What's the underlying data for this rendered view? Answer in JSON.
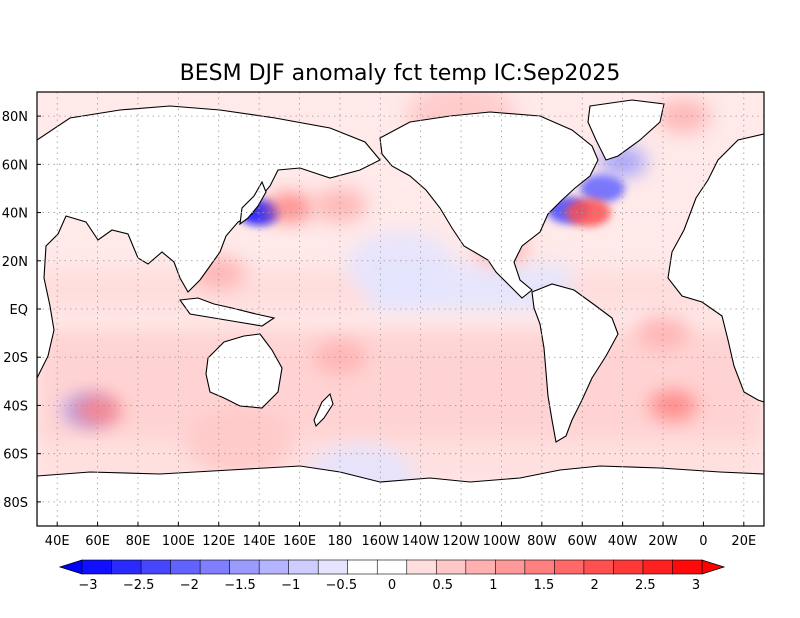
{
  "map": {
    "title": "BESM  DJF anomaly fct temp IC:Sep2025",
    "lat_labels": [
      "80N",
      "60N",
      "40N",
      "20N",
      "EQ",
      "20S",
      "40S",
      "60S",
      "80S"
    ],
    "lat_values": [
      80,
      60,
      40,
      20,
      0,
      -20,
      -40,
      -60,
      -80
    ],
    "lon_labels": [
      "40E",
      "60E",
      "80E",
      "100E",
      "120E",
      "140E",
      "160E",
      "180",
      "160W",
      "140W",
      "120W",
      "100W",
      "80W",
      "60W",
      "40W",
      "20W",
      "0",
      "20E"
    ],
    "lon_values": [
      40,
      60,
      80,
      100,
      120,
      140,
      160,
      180,
      200,
      220,
      240,
      260,
      280,
      300,
      320,
      340,
      360,
      380
    ],
    "lat_range": [
      -90,
      90
    ],
    "lon_range": [
      30,
      390
    ],
    "gridlines": "dotted"
  },
  "colorbar": {
    "labels": [
      "−3",
      "−2.5",
      "−2",
      "−1.5",
      "−1",
      "−0.5",
      "0",
      "0.5",
      "1",
      "1.5",
      "2",
      "2.5",
      "3"
    ],
    "colors": [
      "#1010ff",
      "#2a2aff",
      "#4646ff",
      "#6262ff",
      "#7e7eff",
      "#9a9aff",
      "#b4b4ff",
      "#cdcdff",
      "#e4e4ff",
      "#ffffff",
      "#ffffff",
      "#ffdede",
      "#ffc8c8",
      "#ffb0b0",
      "#ff9898",
      "#ff8080",
      "#ff6868",
      "#ff5050",
      "#ff3838",
      "#ff2020",
      "#ff0a0a"
    ],
    "under_color": "#0000ff",
    "over_color": "#ff0000"
  },
  "chart_data": {
    "type": "heatmap",
    "title": "BESM  DJF anomaly fct temp IC:Sep2025",
    "variable": "temp anomaly",
    "season": "DJF",
    "xlabel": "",
    "ylabel": "",
    "xlim": [
      30,
      390
    ],
    "ylim": [
      -90,
      90
    ],
    "colorbar_range": [
      -3,
      3
    ],
    "colorbar_step": 0.5,
    "anomaly_regions": [
      {
        "lon": 140,
        "lat": 40,
        "value": -3,
        "kind": "cold"
      },
      {
        "lon": 155,
        "lat": 42,
        "value": 1.5,
        "kind": "warm"
      },
      {
        "lon": 180,
        "lat": 43,
        "value": 1,
        "kind": "warm"
      },
      {
        "lon": 293,
        "lat": 41,
        "value": -2.5,
        "kind": "cold"
      },
      {
        "lon": 310,
        "lat": 50,
        "value": -2,
        "kind": "cold"
      },
      {
        "lon": 320,
        "lat": 61,
        "value": -1.5,
        "kind": "cold"
      },
      {
        "lon": 303,
        "lat": 40,
        "value": 2,
        "kind": "warm"
      },
      {
        "lon": 55,
        "lat": -42,
        "value": -1.5,
        "kind": "cold"
      },
      {
        "lon": 60,
        "lat": -42,
        "value": 1.5,
        "kind": "warm"
      },
      {
        "lon": 345,
        "lat": -40,
        "value": 1.5,
        "kind": "warm"
      },
      {
        "lon": 180,
        "lat": -20,
        "value": 1,
        "kind": "warm"
      },
      {
        "lon": 340,
        "lat": -10,
        "value": 1,
        "kind": "warm"
      },
      {
        "lon": 210,
        "lat": 18,
        "value": -0.5,
        "kind": "cold"
      },
      {
        "lon": 120,
        "lat": 15,
        "value": 1,
        "kind": "warm"
      },
      {
        "lon": 260,
        "lat": 25,
        "value": 1,
        "kind": "warm"
      },
      {
        "lon": 130,
        "lat": -55,
        "value": 0.5,
        "kind": "warm"
      },
      {
        "lon": 190,
        "lat": -70,
        "value": -0.5,
        "kind": "cold"
      },
      {
        "lon": 350,
        "lat": 80,
        "value": 1,
        "kind": "warm"
      },
      {
        "lon": 240,
        "lat": 80,
        "value": 0.5,
        "kind": "warm"
      }
    ]
  }
}
